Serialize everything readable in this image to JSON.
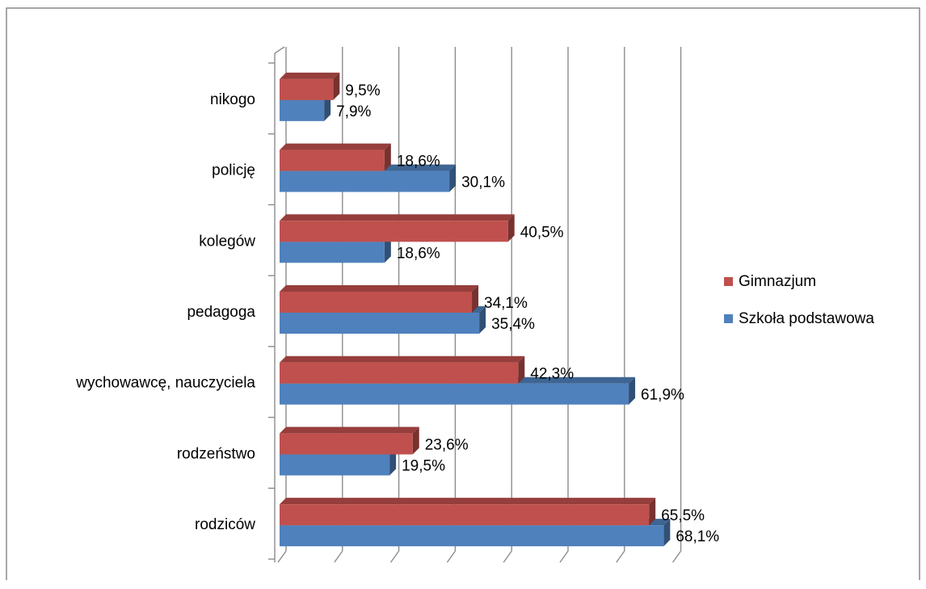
{
  "chart_data": {
    "type": "bar",
    "orientation": "horizontal",
    "style": "3d-clustered",
    "categories": [
      "nikogo",
      "policję",
      "kolegów",
      "pedagoga",
      "wychowawcę, nauczyciela",
      "rodzeństwo",
      "rodziców"
    ],
    "series": [
      {
        "name": "Gimnazjum",
        "color": "#c0504d",
        "values": [
          9.5,
          18.6,
          40.5,
          34.1,
          42.3,
          23.6,
          65.5
        ],
        "labels": [
          "9,5%",
          "18,6%",
          "40,5%",
          "34,1%",
          "42,3%",
          "23,6%",
          "65,5%"
        ]
      },
      {
        "name": "Szkoła podstawowa",
        "color": "#4f81bd",
        "values": [
          7.9,
          30.1,
          18.6,
          35.4,
          61.9,
          19.5,
          68.1
        ],
        "labels": [
          "7,9%",
          "30,1%",
          "18,6%",
          "35,4%",
          "61,9%",
          "19,5%",
          "68,1%"
        ]
      }
    ],
    "xlim": [
      0,
      70
    ],
    "tick_step": 10,
    "grid": true,
    "legend_position": "right",
    "title": "",
    "xlabel": "",
    "ylabel": ""
  }
}
